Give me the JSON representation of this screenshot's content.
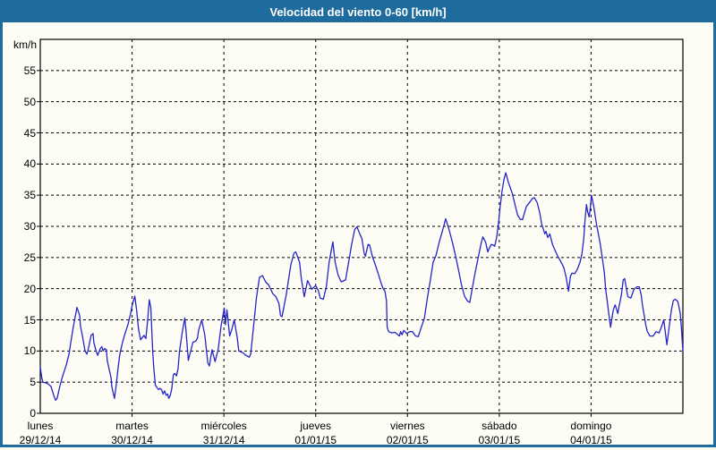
{
  "window": {
    "title": "Velocidad del viento 0-60 [km/h]"
  },
  "colors": {
    "titlebar": "#1e6b9d",
    "frame": "#1e6b9d",
    "background": "#fdfdf6",
    "line": "#2424c8",
    "grid": "#000000",
    "title_text": "#ffffff"
  },
  "chart_data": {
    "type": "line",
    "title": "Velocidad del viento 0-60 [km/h]",
    "ylabel": "km/h",
    "xlabel": "",
    "ylim": [
      0,
      60
    ],
    "xlim_hours": [
      0,
      168
    ],
    "y_tick_step": 5,
    "y_tick_labels": [
      "0",
      "5",
      "10",
      "15",
      "20",
      "25",
      "30",
      "35",
      "40",
      "45",
      "50",
      "55"
    ],
    "grid": "dashed",
    "legend_position": "none",
    "x_tick_labels": [
      {
        "day": "lunes",
        "date": "29/12/14",
        "t": 0
      },
      {
        "day": "martes",
        "date": "30/12/14",
        "t": 24
      },
      {
        "day": "miércoles",
        "date": "31/12/14",
        "t": 48
      },
      {
        "day": "jueves",
        "date": "01/01/15",
        "t": 72
      },
      {
        "day": "viernes",
        "date": "02/01/15",
        "t": 96
      },
      {
        "day": "sábado",
        "date": "03/01/15",
        "t": 120
      },
      {
        "day": "domingo",
        "date": "04/01/15",
        "t": 144
      }
    ],
    "series": [
      {
        "name": "Velocidad del viento",
        "unit": "km/h",
        "color": "#2424c8",
        "points": [
          [
            0,
            7.4
          ],
          [
            0.4,
            5.7
          ],
          [
            0.7,
            5.0
          ],
          [
            1.4,
            4.9
          ],
          [
            2.1,
            4.7
          ],
          [
            2.8,
            4.3
          ],
          [
            3.5,
            2.9
          ],
          [
            4.0,
            2.1
          ],
          [
            4.4,
            2.4
          ],
          [
            5.1,
            4.3
          ],
          [
            5.8,
            5.9
          ],
          [
            6.8,
            7.8
          ],
          [
            7.5,
            9.5
          ],
          [
            7.9,
            11.1
          ],
          [
            8.6,
            13.8
          ],
          [
            9.1,
            15.4
          ],
          [
            9.6,
            17.0
          ],
          [
            10.3,
            15.7
          ],
          [
            10.5,
            14.0
          ],
          [
            11.0,
            12.5
          ],
          [
            11.4,
            11.1
          ],
          [
            11.7,
            10.0
          ],
          [
            12.2,
            9.5
          ],
          [
            12.6,
            10.4
          ],
          [
            13.3,
            12.5
          ],
          [
            13.8,
            12.8
          ],
          [
            14.0,
            11.4
          ],
          [
            14.5,
            10.2
          ],
          [
            15.0,
            9.3
          ],
          [
            15.7,
            10.4
          ],
          [
            16.1,
            10.7
          ],
          [
            16.4,
            10.0
          ],
          [
            16.8,
            10.4
          ],
          [
            17.3,
            10.2
          ],
          [
            17.5,
            8.5
          ],
          [
            18.0,
            7.1
          ],
          [
            18.5,
            5.7
          ],
          [
            18.7,
            4.3
          ],
          [
            19.4,
            2.4
          ],
          [
            19.9,
            4.7
          ],
          [
            20.3,
            7.1
          ],
          [
            20.8,
            9.5
          ],
          [
            21.5,
            11.4
          ],
          [
            22.2,
            12.9
          ],
          [
            22.9,
            14.2
          ],
          [
            23.6,
            16.0
          ],
          [
            24.1,
            17.5
          ],
          [
            24.7,
            18.8
          ],
          [
            25.2,
            16.5
          ],
          [
            25.7,
            13.5
          ],
          [
            26.2,
            11.8
          ],
          [
            26.6,
            12.1
          ],
          [
            27.1,
            12.5
          ],
          [
            27.6,
            12.0
          ],
          [
            28.0,
            14.5
          ],
          [
            28.5,
            18.2
          ],
          [
            28.9,
            17.0
          ],
          [
            29.4,
            10.0
          ],
          [
            29.7,
            7.1
          ],
          [
            30.1,
            4.5
          ],
          [
            30.9,
            3.8
          ],
          [
            31.3,
            4.0
          ],
          [
            31.7,
            3.8
          ],
          [
            32.1,
            3.1
          ],
          [
            32.5,
            3.6
          ],
          [
            32.9,
            2.9
          ],
          [
            33.3,
            3.1
          ],
          [
            33.6,
            2.4
          ],
          [
            34.0,
            2.9
          ],
          [
            34.4,
            4.0
          ],
          [
            34.8,
            6.2
          ],
          [
            35.2,
            6.4
          ],
          [
            35.6,
            6.0
          ],
          [
            36.0,
            7.1
          ],
          [
            36.4,
            10.0
          ],
          [
            36.8,
            11.7
          ],
          [
            37.2,
            13.3
          ],
          [
            37.8,
            15.3
          ],
          [
            38.1,
            13.3
          ],
          [
            38.4,
            10.9
          ],
          [
            38.7,
            8.5
          ],
          [
            39.5,
            10.4
          ],
          [
            39.9,
            11.4
          ],
          [
            40.7,
            11.6
          ],
          [
            41.1,
            12.1
          ],
          [
            41.4,
            13.3
          ],
          [
            42.2,
            15.0
          ],
          [
            43.0,
            12.6
          ],
          [
            43.8,
            8.1
          ],
          [
            44.2,
            7.6
          ],
          [
            44.9,
            10.2
          ],
          [
            45.7,
            8.3
          ],
          [
            46.5,
            10.2
          ],
          [
            47.3,
            14.2
          ],
          [
            48.1,
            16.9
          ],
          [
            48.4,
            14.2
          ],
          [
            48.8,
            16.6
          ],
          [
            49.5,
            12.4
          ],
          [
            50.1,
            13.5
          ],
          [
            50.7,
            15.0
          ],
          [
            51.5,
            12.1
          ],
          [
            51.9,
            10.0
          ],
          [
            53.0,
            9.7
          ],
          [
            53.8,
            9.3
          ],
          [
            54.6,
            9.0
          ],
          [
            55.0,
            9.5
          ],
          [
            55.8,
            14.2
          ],
          [
            56.5,
            18.5
          ],
          [
            57.3,
            21.8
          ],
          [
            58.1,
            22.1
          ],
          [
            58.9,
            21.1
          ],
          [
            59.7,
            20.6
          ],
          [
            60.8,
            19.2
          ],
          [
            61.6,
            18.7
          ],
          [
            62.4,
            17.6
          ],
          [
            62.8,
            15.7
          ],
          [
            63.2,
            15.5
          ],
          [
            64.3,
            19.0
          ],
          [
            65.5,
            23.8
          ],
          [
            66.3,
            25.7
          ],
          [
            66.8,
            25.9
          ],
          [
            67.8,
            24.2
          ],
          [
            68.2,
            21.8
          ],
          [
            69.0,
            18.7
          ],
          [
            69.9,
            21.3
          ],
          [
            71.0,
            19.9
          ],
          [
            72.0,
            20.5
          ],
          [
            72.7,
            19.7
          ],
          [
            73.2,
            18.5
          ],
          [
            74.0,
            18.3
          ],
          [
            74.8,
            20.4
          ],
          [
            75.5,
            24.2
          ],
          [
            76.5,
            27.5
          ],
          [
            77.1,
            24.2
          ],
          [
            77.9,
            22.1
          ],
          [
            78.7,
            21.1
          ],
          [
            79.8,
            21.4
          ],
          [
            80.6,
            24.2
          ],
          [
            81.4,
            27.1
          ],
          [
            82.2,
            29.5
          ],
          [
            82.8,
            29.9
          ],
          [
            83.4,
            29.0
          ],
          [
            84.1,
            28.0
          ],
          [
            84.7,
            25.6
          ],
          [
            85.0,
            25.2
          ],
          [
            85.7,
            27.1
          ],
          [
            86.1,
            27.0
          ],
          [
            86.8,
            25.2
          ],
          [
            87.6,
            23.8
          ],
          [
            88.4,
            22.3
          ],
          [
            89.2,
            20.7
          ],
          [
            89.7,
            19.9
          ],
          [
            90.1,
            19.6
          ],
          [
            90.5,
            18.1
          ],
          [
            90.7,
            13.8
          ],
          [
            91.1,
            13.1
          ],
          [
            91.9,
            12.9
          ],
          [
            92.7,
            13.0
          ],
          [
            93.5,
            12.6
          ],
          [
            93.9,
            12.4
          ],
          [
            94.2,
            13.1
          ],
          [
            94.6,
            12.6
          ],
          [
            95.0,
            13.3
          ],
          [
            95.8,
            12.8
          ],
          [
            96.6,
            13.1
          ],
          [
            97.3,
            13.1
          ],
          [
            98.1,
            12.4
          ],
          [
            98.8,
            12.3
          ],
          [
            99.6,
            13.8
          ],
          [
            100.4,
            15.2
          ],
          [
            101.2,
            18.5
          ],
          [
            102.0,
            21.4
          ],
          [
            102.7,
            24.2
          ],
          [
            103.5,
            25.4
          ],
          [
            104.3,
            27.5
          ],
          [
            105.1,
            29.2
          ],
          [
            106.0,
            31.2
          ],
          [
            107.0,
            29.2
          ],
          [
            107.8,
            27.3
          ],
          [
            108.6,
            25.2
          ],
          [
            109.4,
            22.8
          ],
          [
            110.1,
            20.7
          ],
          [
            110.9,
            18.8
          ],
          [
            111.7,
            18.0
          ],
          [
            112.3,
            17.8
          ],
          [
            112.9,
            19.9
          ],
          [
            113.6,
            22.3
          ],
          [
            114.4,
            24.7
          ],
          [
            115.2,
            27.1
          ],
          [
            115.7,
            28.3
          ],
          [
            116.4,
            27.5
          ],
          [
            117.0,
            25.9
          ],
          [
            117.4,
            26.5
          ],
          [
            117.9,
            27.1
          ],
          [
            118.4,
            27.0
          ],
          [
            118.8,
            26.8
          ],
          [
            119.3,
            28.2
          ],
          [
            119.8,
            30.5
          ],
          [
            120.2,
            33.0
          ],
          [
            120.7,
            35.5
          ],
          [
            121.2,
            37.5
          ],
          [
            121.7,
            38.6
          ],
          [
            122.4,
            37.0
          ],
          [
            123.4,
            35.3
          ],
          [
            124.1,
            33.5
          ],
          [
            124.8,
            31.8
          ],
          [
            125.5,
            31.1
          ],
          [
            126.1,
            31.1
          ],
          [
            126.4,
            31.8
          ],
          [
            127.1,
            33.2
          ],
          [
            128.0,
            33.9
          ],
          [
            128.7,
            34.5
          ],
          [
            129.2,
            34.6
          ],
          [
            129.9,
            33.8
          ],
          [
            130.6,
            32.1
          ],
          [
            131.1,
            30.3
          ],
          [
            131.5,
            29.6
          ],
          [
            131.9,
            28.8
          ],
          [
            132.2,
            29.2
          ],
          [
            132.7,
            28.2
          ],
          [
            133.2,
            28.8
          ],
          [
            133.9,
            27.1
          ],
          [
            134.6,
            26.1
          ],
          [
            135.3,
            25.2
          ],
          [
            136.2,
            24.2
          ],
          [
            136.9,
            23.3
          ],
          [
            137.5,
            21.8
          ],
          [
            138.1,
            19.6
          ],
          [
            138.6,
            22.0
          ],
          [
            139.0,
            22.5
          ],
          [
            139.7,
            22.4
          ],
          [
            140.4,
            23.1
          ],
          [
            141.1,
            24.2
          ],
          [
            141.6,
            25.6
          ],
          [
            142.1,
            28.1
          ],
          [
            142.4,
            30.9
          ],
          [
            142.8,
            33.5
          ],
          [
            143.1,
            32.3
          ],
          [
            143.5,
            31.5
          ],
          [
            143.8,
            33.0
          ],
          [
            144.1,
            35.0
          ],
          [
            144.7,
            33.2
          ],
          [
            145.4,
            30.4
          ],
          [
            146.3,
            27.5
          ],
          [
            147.0,
            24.6
          ],
          [
            147.5,
            22.4
          ],
          [
            147.8,
            19.9
          ],
          [
            148.2,
            18.1
          ],
          [
            148.6,
            16.1
          ],
          [
            149.1,
            13.8
          ],
          [
            149.8,
            16.6
          ],
          [
            150.3,
            17.4
          ],
          [
            151.0,
            16.0
          ],
          [
            151.3,
            17.1
          ],
          [
            151.9,
            18.9
          ],
          [
            152.4,
            21.4
          ],
          [
            152.8,
            21.6
          ],
          [
            153.6,
            18.7
          ],
          [
            154.4,
            18.5
          ],
          [
            155.2,
            19.9
          ],
          [
            156.0,
            20.3
          ],
          [
            156.6,
            20.3
          ],
          [
            157.1,
            19.0
          ],
          [
            157.5,
            17.1
          ],
          [
            157.9,
            15.7
          ],
          [
            158.3,
            14.2
          ],
          [
            158.7,
            13.1
          ],
          [
            159.4,
            12.4
          ],
          [
            160.2,
            12.4
          ],
          [
            161.0,
            13.1
          ],
          [
            161.8,
            12.9
          ],
          [
            162.6,
            14.2
          ],
          [
            163.0,
            15.0
          ],
          [
            163.4,
            13.1
          ],
          [
            163.8,
            11.0
          ],
          [
            164.5,
            14.2
          ],
          [
            165.0,
            16.6
          ],
          [
            165.5,
            18.1
          ],
          [
            166.1,
            18.3
          ],
          [
            166.7,
            17.9
          ],
          [
            167.3,
            16.1
          ],
          [
            167.6,
            13.8
          ],
          [
            168.0,
            10.0
          ]
        ]
      }
    ]
  }
}
